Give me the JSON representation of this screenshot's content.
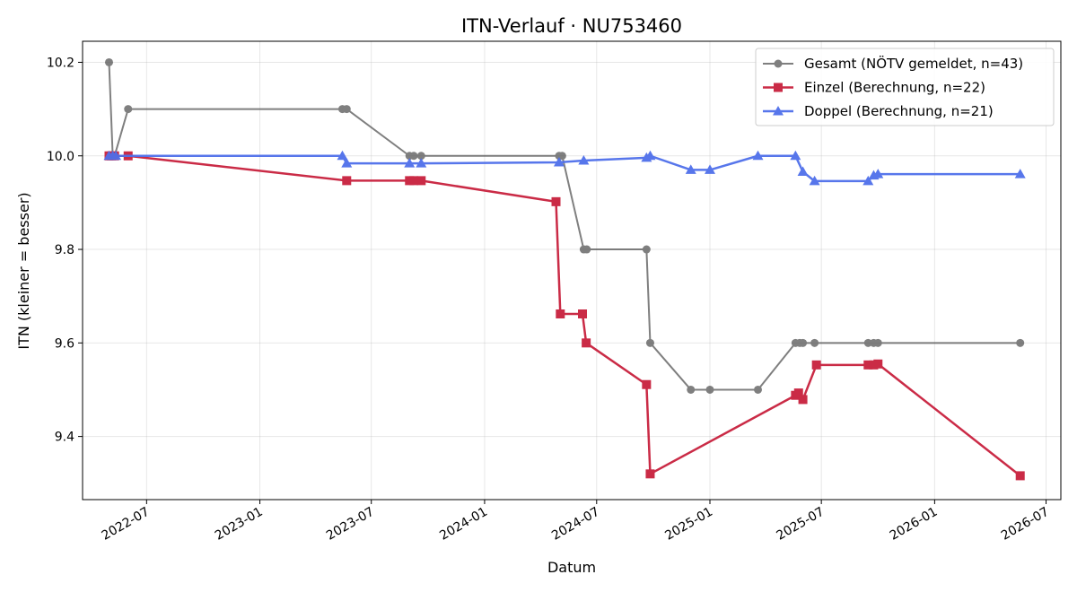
{
  "chart_data": {
    "type": "line",
    "title": "ITN-Verlauf · NU753460",
    "xlabel": "Datum",
    "ylabel": "ITN  (kleiner = besser)",
    "xlim": [
      "2022-03-19",
      "2026-07-25"
    ],
    "ylim": [
      9.265,
      10.245
    ],
    "x_ticks": [
      "2022-07-01",
      "2023-01-01",
      "2023-07-01",
      "2024-01-01",
      "2024-07-01",
      "2025-01-01",
      "2025-07-01",
      "2026-01-01",
      "2026-07-01"
    ],
    "x_tick_labels": [
      "2022-07",
      "2023-01",
      "2023-07",
      "2024-01",
      "2024-07",
      "2025-01",
      "2025-07",
      "2026-01",
      "2026-07"
    ],
    "y_ticks": [
      9.4,
      9.6,
      9.8,
      10.0,
      10.2
    ],
    "y_tick_labels": [
      "9.4",
      "9.6",
      "9.8",
      "10.0",
      "10.2"
    ],
    "grid": true,
    "legend_position": "top-right",
    "series": [
      {
        "name": "Gesamt (NÖTV gemeldet, n=43)",
        "color": "#555555",
        "marker": "circle",
        "points": [
          [
            "2022-05-01",
            10.2
          ],
          [
            "2022-05-07",
            10.0
          ],
          [
            "2022-05-10",
            10.0
          ],
          [
            "2022-06-01",
            10.1
          ],
          [
            "2023-05-15",
            10.1
          ],
          [
            "2023-05-22",
            10.1
          ],
          [
            "2023-09-01",
            10.0
          ],
          [
            "2023-09-08",
            10.0
          ],
          [
            "2023-09-20",
            10.0
          ],
          [
            "2024-05-01",
            10.0
          ],
          [
            "2024-05-06",
            10.0
          ],
          [
            "2024-06-10",
            9.8
          ],
          [
            "2024-06-15",
            9.8
          ],
          [
            "2024-09-20",
            9.8
          ],
          [
            "2024-09-26",
            9.6
          ],
          [
            "2024-12-01",
            9.5
          ],
          [
            "2025-01-01",
            9.5
          ],
          [
            "2025-03-20",
            9.5
          ],
          [
            "2025-05-20",
            9.6
          ],
          [
            "2025-05-27",
            9.6
          ],
          [
            "2025-06-01",
            9.6
          ],
          [
            "2025-06-20",
            9.6
          ],
          [
            "2025-09-15",
            9.6
          ],
          [
            "2025-09-24",
            9.6
          ],
          [
            "2025-10-01",
            9.6
          ],
          [
            "2026-05-20",
            9.6
          ]
        ]
      },
      {
        "name": "Einzel (Berechnung, n=22)",
        "color": "#c8203d",
        "marker": "square",
        "points": [
          [
            "2022-05-01",
            10.0
          ],
          [
            "2022-05-05",
            10.0
          ],
          [
            "2022-05-10",
            10.0
          ],
          [
            "2022-06-01",
            10.0
          ],
          [
            "2023-05-22",
            9.947
          ],
          [
            "2023-09-01",
            9.947
          ],
          [
            "2023-09-08",
            9.947
          ],
          [
            "2023-09-20",
            9.947
          ],
          [
            "2024-04-26",
            9.902
          ],
          [
            "2024-05-03",
            9.662
          ],
          [
            "2024-06-08",
            9.662
          ],
          [
            "2024-06-14",
            9.6
          ],
          [
            "2024-09-20",
            9.511
          ],
          [
            "2024-09-26",
            9.32
          ],
          [
            "2025-05-20",
            9.488
          ],
          [
            "2025-05-25",
            9.493
          ],
          [
            "2025-06-01",
            9.479
          ],
          [
            "2025-06-23",
            9.553
          ],
          [
            "2025-09-15",
            9.553
          ],
          [
            "2025-09-24",
            9.553
          ],
          [
            "2025-10-01",
            9.555
          ],
          [
            "2026-05-20",
            9.316
          ]
        ]
      },
      {
        "name": "Doppel (Berechnung, n=21)",
        "color": "#4f6fea",
        "marker": "triangle",
        "points": [
          [
            "2022-05-01",
            10.0
          ],
          [
            "2022-05-07",
            10.0
          ],
          [
            "2022-05-12",
            10.0
          ],
          [
            "2023-05-15",
            10.0
          ],
          [
            "2023-05-22",
            9.984
          ],
          [
            "2023-09-01",
            9.984
          ],
          [
            "2023-09-20",
            9.984
          ],
          [
            "2024-05-01",
            9.986
          ],
          [
            "2024-06-10",
            9.99
          ],
          [
            "2024-09-20",
            9.996
          ],
          [
            "2024-09-26",
            10.0
          ],
          [
            "2024-12-01",
            9.97
          ],
          [
            "2025-01-01",
            9.97
          ],
          [
            "2025-03-20",
            10.0
          ],
          [
            "2025-05-20",
            10.0
          ],
          [
            "2025-06-01",
            9.966
          ],
          [
            "2025-06-20",
            9.946
          ],
          [
            "2025-09-15",
            9.946
          ],
          [
            "2025-09-24",
            9.958
          ],
          [
            "2025-10-01",
            9.961
          ],
          [
            "2026-05-20",
            9.961
          ]
        ]
      }
    ]
  }
}
